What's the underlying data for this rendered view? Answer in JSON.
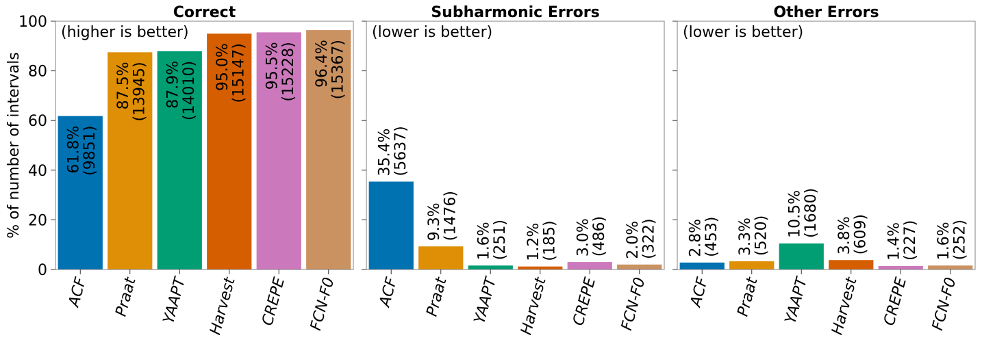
{
  "chart_data": [
    {
      "type": "bar",
      "title": "Correct",
      "annotation": "(higher is better)",
      "ylabel": "% of number of intervals",
      "ylim": [
        0,
        100
      ],
      "yticks": [
        "0",
        "20",
        "40",
        "60",
        "80",
        "100"
      ],
      "categories": [
        "ACF",
        "Praat",
        "YAAPT",
        "Harvest",
        "CREPE",
        "FCN-F0"
      ],
      "values": [
        61.8,
        87.5,
        87.9,
        95.0,
        95.5,
        96.4
      ],
      "data_labels": [
        [
          "61.8%",
          "(9851)"
        ],
        [
          "87.5%",
          "(13945)"
        ],
        [
          "87.9%",
          "(14010)"
        ],
        [
          "95.0%",
          "(15147)"
        ],
        [
          "95.5%",
          "(15228)"
        ],
        [
          "96.4%",
          "(15367)"
        ]
      ]
    },
    {
      "type": "bar",
      "title": "Subharmonic Errors",
      "annotation": "(lower is better)",
      "ylim": [
        0,
        100
      ],
      "categories": [
        "ACF",
        "Praat",
        "YAAPT",
        "Harvest",
        "CREPE",
        "FCN-F0"
      ],
      "values": [
        35.4,
        9.3,
        1.6,
        1.2,
        3.0,
        2.0
      ],
      "data_labels": [
        [
          "35.4%",
          "(5637)"
        ],
        [
          "9.3%",
          "(1476)"
        ],
        [
          "1.6%",
          "(251)"
        ],
        [
          "1.2%",
          "(185)"
        ],
        [
          "3.0%",
          "(486)"
        ],
        [
          "2.0%",
          "(322)"
        ]
      ]
    },
    {
      "type": "bar",
      "title": "Other Errors",
      "annotation": "(lower is better)",
      "ylim": [
        0,
        100
      ],
      "categories": [
        "ACF",
        "Praat",
        "YAAPT",
        "Harvest",
        "CREPE",
        "FCN-F0"
      ],
      "values": [
        2.8,
        3.3,
        10.5,
        3.8,
        1.4,
        1.6
      ],
      "data_labels": [
        [
          "2.8%",
          "(453)"
        ],
        [
          "3.3%",
          "(520)"
        ],
        [
          "10.5%",
          "(1680)"
        ],
        [
          "3.8%",
          "(609)"
        ],
        [
          "1.4%",
          "(227)"
        ],
        [
          "1.6%",
          "(252)"
        ]
      ]
    }
  ],
  "colors": [
    "#0072b2",
    "#de8f05",
    "#029e73",
    "#d55e00",
    "#cc78bc",
    "#ca9161"
  ],
  "grid": false,
  "legend": "none"
}
